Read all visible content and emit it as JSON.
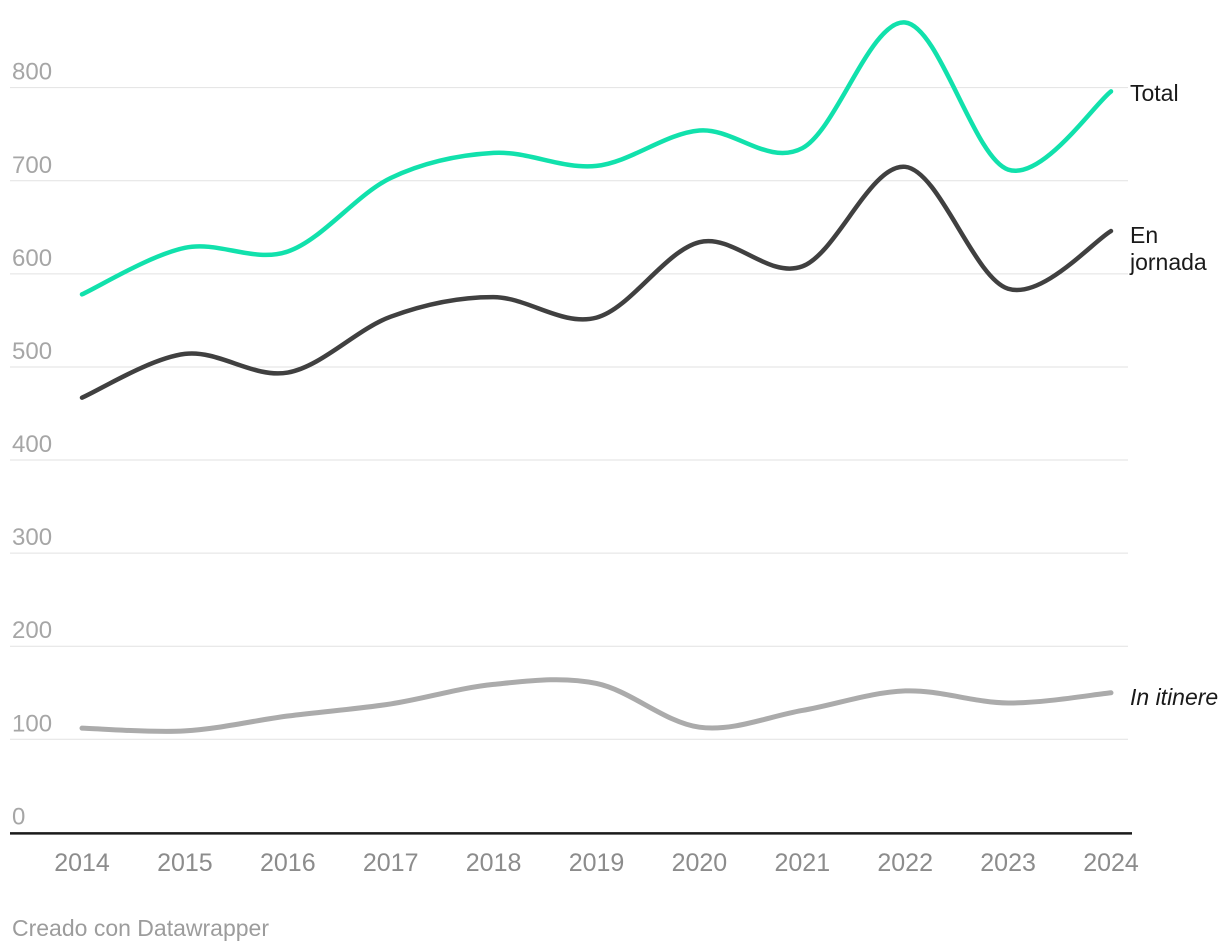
{
  "chart_data": {
    "type": "line",
    "x": [
      2014,
      2015,
      2016,
      2017,
      2018,
      2019,
      2020,
      2021,
      2022,
      2023,
      2024
    ],
    "series": [
      {
        "name": "Total",
        "color": "#11e1ac",
        "values": [
          578,
          628,
          624,
          703,
          730,
          716,
          754,
          735,
          870,
          712,
          796
        ]
      },
      {
        "name": "En jornada",
        "color": "#404040",
        "values": [
          467,
          514,
          494,
          554,
          575,
          553,
          634,
          608,
          715,
          584,
          646
        ]
      },
      {
        "name": "In itinere",
        "color": "#ababab",
        "values": [
          112,
          109,
          125,
          138,
          159,
          160,
          113,
          131,
          152,
          139,
          150
        ]
      }
    ],
    "yticks": [
      0,
      100,
      200,
      300,
      400,
      500,
      600,
      700,
      800
    ],
    "ylim": [
      0,
      880
    ],
    "grid": "horizontal",
    "legend_position": "end-of-line",
    "curve": "smooth-spline"
  },
  "labels": {
    "total": "Total",
    "en_jornada": "En jornada",
    "in_itinere": "In itinere"
  },
  "footer": {
    "credit": "Creado con Datawrapper"
  },
  "colors": {
    "background": "#ffffff",
    "gridline": "#e2e2e2",
    "axis": "#1a1a1a",
    "y_tick_label": "#a6a6a6",
    "x_tick_label": "#8c8c8c",
    "series_label": "#1a1a1a",
    "footer_text": "#9c9c9c",
    "total_line": "#11e1ac",
    "en_jornada_line": "#404040",
    "in_itinere_line": "#ababab"
  }
}
